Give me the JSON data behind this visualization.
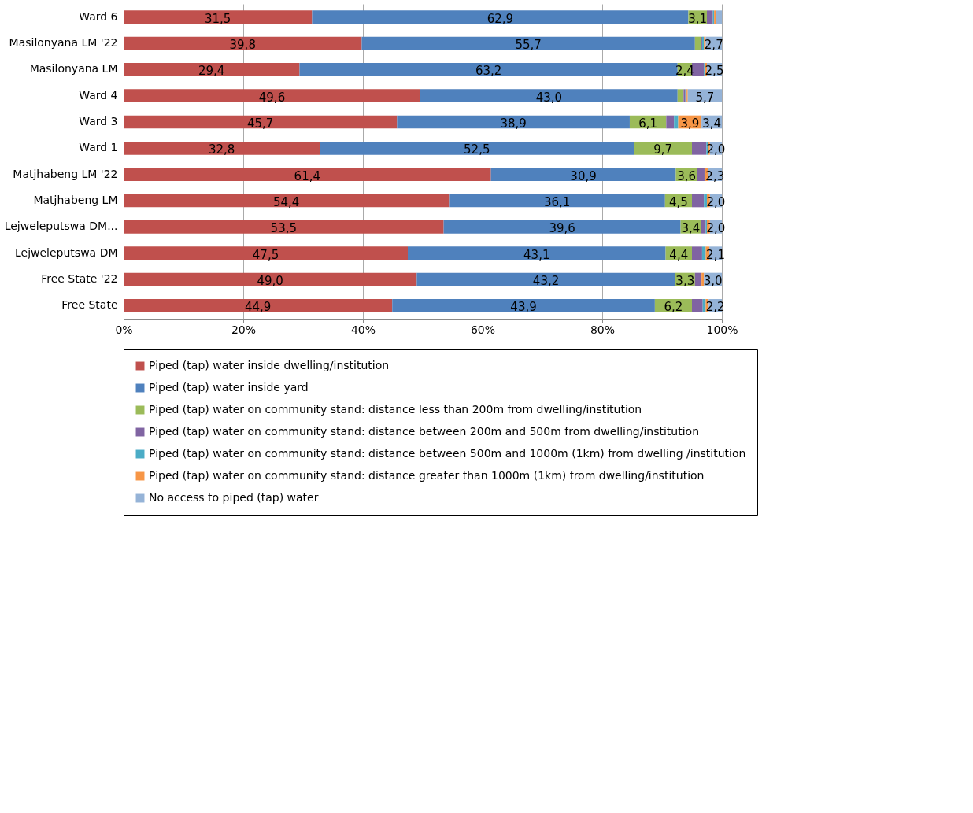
{
  "chart_data": {
    "type": "bar",
    "orientation": "horizontal",
    "stacked": true,
    "grid": "x",
    "legend": "bottom",
    "categories": [
      "Ward 6",
      "Masilonyana LM '22",
      "Masilonyana LM",
      "Ward 4",
      "Ward 3",
      "Ward 1",
      "Matjhabeng LM '22",
      "Matjhabeng LM",
      "Lejweleputswa DM...",
      "Lejweleputswa DM",
      "Free State '22",
      "Free State"
    ],
    "xlim": [
      0,
      100
    ],
    "xticks": [
      {
        "value": 0,
        "label": "0%"
      },
      {
        "value": 20,
        "label": "20%"
      },
      {
        "value": 40,
        "label": "40%"
      },
      {
        "value": 60,
        "label": "60%"
      },
      {
        "value": 80,
        "label": "80%"
      },
      {
        "value": 100,
        "label": "100%"
      }
    ],
    "series": [
      {
        "name": "Piped (tap) water inside dwelling/institution",
        "color": "#c0504d",
        "values": [
          31.5,
          39.8,
          29.4,
          49.6,
          45.7,
          32.8,
          61.4,
          54.4,
          53.5,
          47.5,
          49.0,
          44.9
        ],
        "value_labels": [
          "31,5",
          "39,8",
          "29,4",
          "49,6",
          "45,7",
          "32,8",
          "61,4",
          "54,4",
          "53,5",
          "47,5",
          "49,0",
          "44,9"
        ]
      },
      {
        "name": "Piped (tap) water inside yard",
        "color": "#4f81bd",
        "values": [
          62.9,
          55.7,
          63.2,
          43.0,
          38.9,
          52.5,
          30.9,
          36.1,
          39.6,
          43.1,
          43.2,
          43.9
        ],
        "value_labels": [
          "62,9",
          "55,7",
          "63,2",
          "43,0",
          "38,9",
          "52,5",
          "30,9",
          "36,1",
          "39,6",
          "43,1",
          "43,2",
          "43,9"
        ]
      },
      {
        "name": "Piped (tap) water on community stand: distance less than 200m from dwelling/institution",
        "color": "#9bbb59",
        "values": [
          3.1,
          1.0,
          2.4,
          1.0,
          6.1,
          9.7,
          3.6,
          4.5,
          3.4,
          4.4,
          3.3,
          6.2
        ],
        "value_labels": [
          "3,1",
          null,
          "2,4",
          null,
          "6,1",
          "9,7",
          "3,6",
          "4,5",
          "3,4",
          "4,4",
          "3,3",
          "6,2"
        ]
      },
      {
        "name": "Piped (tap) water on community stand: distance between 200m and 500m from dwelling/institution",
        "color": "#8064a2",
        "values": [
          1.0,
          0.2,
          2.0,
          0.3,
          1.3,
          2.4,
          1.2,
          2.0,
          0.8,
          1.7,
          1.0,
          1.8
        ]
      },
      {
        "name": "Piped (tap) water on community stand: distance between 500m and 1000m (1km) from dwelling /institution",
        "color": "#4bacc6",
        "values": [
          0.2,
          0.3,
          0.2,
          0.2,
          0.7,
          0.3,
          0.1,
          0.5,
          0.2,
          0.6,
          0.1,
          0.5
        ]
      },
      {
        "name": "Piped (tap) water on community stand: distance greater than 1000m (1km) from dwelling/institution",
        "color": "#f79646",
        "values": [
          0.3,
          0.3,
          0.3,
          0.2,
          3.9,
          0.3,
          0.5,
          0.5,
          0.5,
          0.6,
          0.4,
          0.5
        ],
        "value_labels": [
          null,
          null,
          null,
          null,
          "3,9",
          null,
          null,
          null,
          null,
          null,
          null,
          null
        ]
      },
      {
        "name": "No access to piped (tap) water",
        "color": "#95b3d7",
        "values": [
          1.0,
          2.7,
          2.5,
          5.7,
          3.4,
          2.0,
          2.3,
          2.0,
          2.0,
          2.1,
          3.0,
          2.2
        ],
        "value_labels": [
          null,
          "2,7",
          "2,5",
          "5,7",
          "3,4",
          "2,0",
          "2,3",
          "2,0",
          "2,0",
          "2,1",
          "3,0",
          "2,2"
        ]
      }
    ]
  }
}
